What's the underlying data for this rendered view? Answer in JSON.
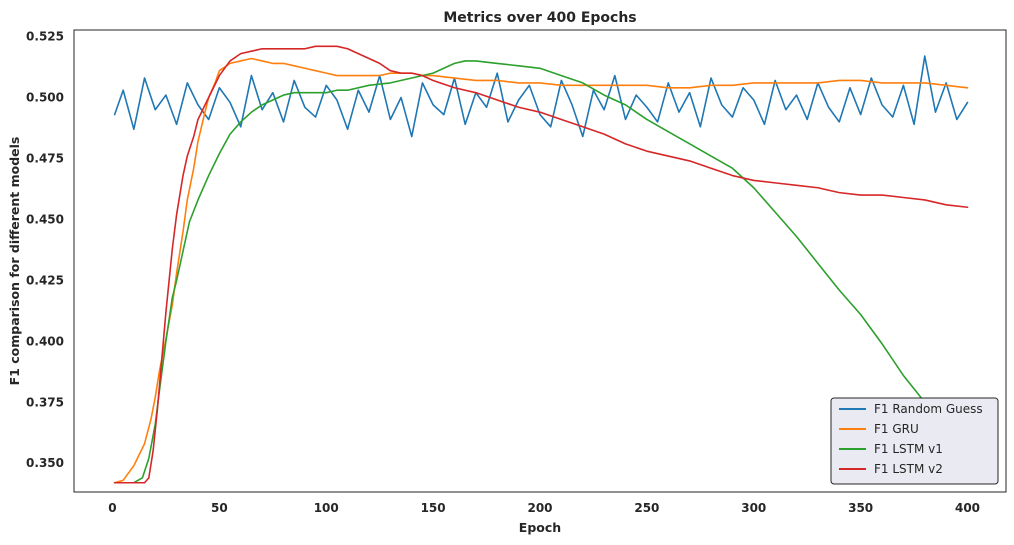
{
  "chart_data": {
    "type": "line",
    "title": "Metrics over 400 Epochs",
    "xlabel": "Epoch",
    "ylabel": "F1 comparison for different models",
    "xlim": [
      -18,
      418
    ],
    "ylim": [
      0.3382,
      0.5277
    ],
    "xticks": [
      0,
      50,
      100,
      150,
      200,
      250,
      300,
      350,
      400
    ],
    "yticks": [
      0.35,
      0.375,
      0.4,
      0.425,
      0.45,
      0.475,
      0.5,
      0.525
    ],
    "xtick_labels": [
      "0",
      "50",
      "100",
      "150",
      "200",
      "250",
      "300",
      "350",
      "400"
    ],
    "ytick_labels": [
      "0.350",
      "0.375",
      "0.400",
      "0.425",
      "0.450",
      "0.475",
      "0.500",
      "0.525"
    ],
    "grid": false,
    "legend_position": "lower-right",
    "series": [
      {
        "name": "F1 Random Guess",
        "color": "#1f77b4",
        "x": [
          1,
          5,
          10,
          15,
          20,
          25,
          30,
          35,
          40,
          45,
          50,
          55,
          60,
          65,
          70,
          75,
          80,
          85,
          90,
          95,
          100,
          105,
          110,
          115,
          120,
          125,
          130,
          135,
          140,
          145,
          150,
          155,
          160,
          165,
          170,
          175,
          180,
          185,
          190,
          195,
          200,
          205,
          210,
          215,
          220,
          225,
          230,
          235,
          240,
          245,
          250,
          255,
          260,
          265,
          270,
          275,
          280,
          285,
          290,
          295,
          300,
          305,
          310,
          315,
          320,
          325,
          330,
          335,
          340,
          345,
          350,
          355,
          360,
          365,
          370,
          375,
          380,
          385,
          390,
          395,
          400
        ],
        "y": [
          0.493,
          0.503,
          0.487,
          0.508,
          0.495,
          0.501,
          0.489,
          0.506,
          0.497,
          0.491,
          0.504,
          0.498,
          0.488,
          0.509,
          0.495,
          0.502,
          0.49,
          0.507,
          0.496,
          0.492,
          0.505,
          0.499,
          0.487,
          0.503,
          0.494,
          0.509,
          0.491,
          0.5,
          0.484,
          0.506,
          0.497,
          0.493,
          0.508,
          0.489,
          0.502,
          0.496,
          0.51,
          0.49,
          0.499,
          0.505,
          0.493,
          0.488,
          0.507,
          0.497,
          0.484,
          0.503,
          0.495,
          0.509,
          0.491,
          0.501,
          0.496,
          0.49,
          0.506,
          0.494,
          0.502,
          0.488,
          0.508,
          0.497,
          0.492,
          0.504,
          0.499,
          0.489,
          0.507,
          0.495,
          0.501,
          0.491,
          0.506,
          0.496,
          0.49,
          0.504,
          0.493,
          0.508,
          0.497,
          0.492,
          0.505,
          0.489,
          0.517,
          0.494,
          0.506,
          0.491,
          0.498
        ]
      },
      {
        "name": "F1 GRU",
        "color": "#ff7f0e",
        "x": [
          1,
          5,
          10,
          15,
          18,
          20,
          22,
          25,
          28,
          30,
          33,
          35,
          38,
          40,
          43,
          45,
          48,
          50,
          55,
          60,
          65,
          70,
          75,
          80,
          85,
          90,
          95,
          100,
          105,
          110,
          115,
          120,
          125,
          130,
          135,
          140,
          145,
          150,
          160,
          170,
          180,
          190,
          200,
          210,
          220,
          230,
          240,
          250,
          260,
          270,
          280,
          290,
          300,
          310,
          320,
          330,
          340,
          350,
          360,
          370,
          380,
          390,
          400
        ],
        "y": [
          0.342,
          0.343,
          0.349,
          0.358,
          0.368,
          0.377,
          0.388,
          0.401,
          0.415,
          0.428,
          0.445,
          0.458,
          0.471,
          0.482,
          0.493,
          0.5,
          0.506,
          0.511,
          0.514,
          0.515,
          0.516,
          0.515,
          0.514,
          0.514,
          0.513,
          0.512,
          0.511,
          0.51,
          0.509,
          0.509,
          0.509,
          0.509,
          0.509,
          0.51,
          0.51,
          0.51,
          0.509,
          0.509,
          0.508,
          0.507,
          0.507,
          0.506,
          0.506,
          0.505,
          0.505,
          0.505,
          0.505,
          0.505,
          0.504,
          0.504,
          0.505,
          0.505,
          0.506,
          0.506,
          0.506,
          0.506,
          0.507,
          0.507,
          0.506,
          0.506,
          0.506,
          0.505,
          0.504
        ]
      },
      {
        "name": "F1 LSTM v1",
        "color": "#2ca02c",
        "x": [
          1,
          5,
          10,
          14,
          17,
          20,
          22,
          25,
          28,
          30,
          33,
          36,
          40,
          45,
          50,
          55,
          60,
          65,
          70,
          75,
          80,
          85,
          90,
          95,
          100,
          105,
          110,
          120,
          130,
          140,
          150,
          160,
          165,
          170,
          180,
          190,
          200,
          210,
          220,
          230,
          240,
          250,
          260,
          270,
          280,
          290,
          300,
          310,
          320,
          330,
          340,
          350,
          360,
          370,
          380,
          390,
          400
        ],
        "y": [
          0.342,
          0.342,
          0.342,
          0.344,
          0.352,
          0.366,
          0.38,
          0.4,
          0.418,
          0.425,
          0.437,
          0.449,
          0.458,
          0.468,
          0.477,
          0.485,
          0.49,
          0.494,
          0.497,
          0.499,
          0.501,
          0.502,
          0.502,
          0.502,
          0.502,
          0.503,
          0.503,
          0.505,
          0.506,
          0.508,
          0.51,
          0.514,
          0.515,
          0.515,
          0.514,
          0.513,
          0.512,
          0.509,
          0.506,
          0.501,
          0.497,
          0.491,
          0.486,
          0.481,
          0.476,
          0.471,
          0.463,
          0.453,
          0.443,
          0.432,
          0.421,
          0.411,
          0.399,
          0.386,
          0.375,
          0.366,
          0.358
        ]
      },
      {
        "name": "F1 LSTM v2",
        "color": "#d62728",
        "x": [
          1,
          5,
          10,
          15,
          17,
          19,
          21,
          23,
          25,
          28,
          30,
          33,
          35,
          38,
          40,
          45,
          50,
          55,
          60,
          65,
          70,
          75,
          80,
          85,
          90,
          95,
          100,
          105,
          110,
          115,
          120,
          125,
          130,
          135,
          140,
          145,
          150,
          160,
          170,
          180,
          190,
          200,
          210,
          220,
          230,
          240,
          250,
          260,
          270,
          280,
          290,
          300,
          310,
          320,
          330,
          340,
          350,
          360,
          370,
          380,
          390,
          400
        ],
        "y": [
          0.342,
          0.342,
          0.342,
          0.342,
          0.344,
          0.355,
          0.372,
          0.392,
          0.412,
          0.438,
          0.452,
          0.468,
          0.476,
          0.484,
          0.491,
          0.5,
          0.509,
          0.515,
          0.518,
          0.519,
          0.52,
          0.52,
          0.52,
          0.52,
          0.52,
          0.521,
          0.521,
          0.521,
          0.52,
          0.518,
          0.516,
          0.514,
          0.511,
          0.51,
          0.51,
          0.509,
          0.507,
          0.504,
          0.502,
          0.499,
          0.496,
          0.494,
          0.491,
          0.488,
          0.485,
          0.481,
          0.478,
          0.476,
          0.474,
          0.471,
          0.468,
          0.466,
          0.465,
          0.464,
          0.463,
          0.461,
          0.46,
          0.46,
          0.459,
          0.458,
          0.456,
          0.455
        ]
      }
    ]
  }
}
